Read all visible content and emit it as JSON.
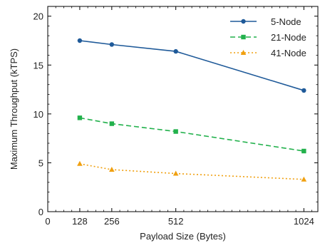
{
  "chart_data": {
    "type": "line",
    "title": "",
    "xlabel": "Payload Size (Bytes)",
    "ylabel": "Maximum Throughput (kTPS)",
    "x": [
      128,
      256,
      512,
      1024
    ],
    "xlim": [
      0,
      1080
    ],
    "ylim": [
      0,
      21
    ],
    "xticks": [
      0,
      128,
      256,
      512,
      1024
    ],
    "yticks": [
      0,
      5,
      10,
      15,
      20
    ],
    "grid": false,
    "legend_position": "top-right",
    "series": [
      {
        "name": "5-Node",
        "values": [
          17.5,
          17.1,
          16.4,
          12.4
        ],
        "color": "#1f5a99",
        "marker": "circle",
        "line_style": "solid"
      },
      {
        "name": "21-Node",
        "values": [
          9.6,
          9.0,
          8.2,
          6.2
        ],
        "color": "#22b14c",
        "marker": "square",
        "line_style": "dashed"
      },
      {
        "name": "41-Node",
        "values": [
          4.9,
          4.3,
          3.9,
          3.3
        ],
        "color": "#f0a010",
        "marker": "triangle",
        "line_style": "dotted"
      }
    ]
  }
}
